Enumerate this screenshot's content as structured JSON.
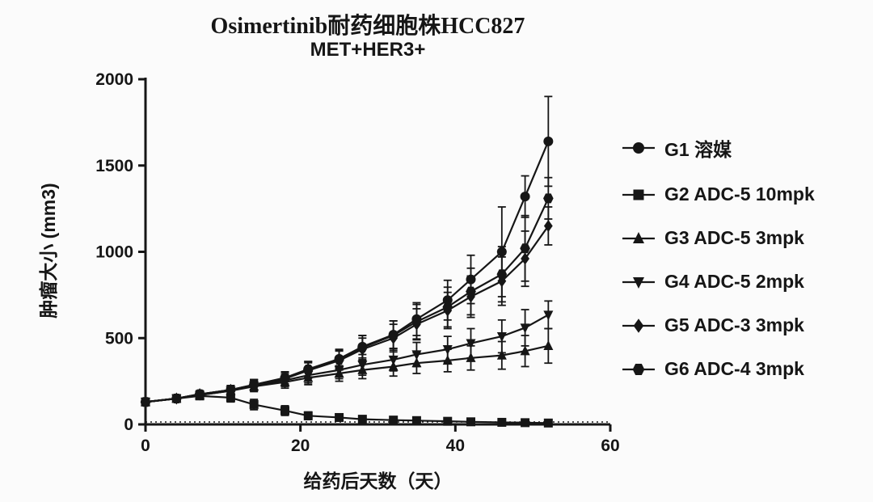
{
  "page": {
    "background": "#fbfbfb",
    "ink": "#161616"
  },
  "chart_data": {
    "type": "line",
    "title": "Osimertinib耐药细胞株HCC827",
    "subtitle": "MET+HER3+",
    "xlabel": "给药后天数（天）",
    "ylabel": "肿瘤大小 (mm3)",
    "xlim": [
      0,
      60
    ],
    "ylim": [
      0,
      2000
    ],
    "xticks": [
      0,
      20,
      40,
      60
    ],
    "yticks": [
      0,
      500,
      1000,
      1500,
      2000
    ],
    "grid": false,
    "zero_line_dotted": true,
    "legend_position": "right",
    "x": [
      0,
      4,
      7,
      11,
      14,
      18,
      21,
      25,
      28,
      32,
      35,
      39,
      42,
      46,
      49,
      52
    ],
    "series": [
      {
        "name": "G1  溶媒",
        "marker": "circle",
        "values": [
          130,
          150,
          175,
          200,
          230,
          270,
          320,
          380,
          450,
          520,
          610,
          720,
          840,
          1000,
          1320,
          1640
        ],
        "errors": [
          15,
          15,
          20,
          25,
          30,
          35,
          45,
          55,
          65,
          80,
          95,
          115,
          140,
          260,
          120,
          260
        ]
      },
      {
        "name": "G2 ADC-5 10mpk",
        "marker": "square",
        "values": [
          130,
          150,
          165,
          155,
          115,
          80,
          50,
          40,
          30,
          25,
          22,
          18,
          15,
          12,
          10,
          8
        ],
        "errors": [
          15,
          15,
          20,
          25,
          30,
          28,
          22,
          16,
          12,
          10,
          8,
          8,
          6,
          6,
          5,
          5
        ]
      },
      {
        "name": "G3 ADC-5 3mpk",
        "marker": "triangle-up",
        "values": [
          130,
          150,
          170,
          195,
          220,
          245,
          270,
          295,
          315,
          335,
          355,
          370,
          385,
          400,
          425,
          455
        ],
        "errors": [
          15,
          15,
          20,
          25,
          30,
          35,
          40,
          45,
          50,
          55,
          60,
          65,
          70,
          80,
          90,
          100
        ]
      },
      {
        "name": "G4 ADC-5 2mpk",
        "marker": "triangle-down",
        "values": [
          130,
          150,
          170,
          195,
          225,
          255,
          285,
          315,
          345,
          375,
          405,
          435,
          470,
          510,
          560,
          635
        ],
        "errors": [
          15,
          15,
          20,
          25,
          30,
          35,
          45,
          50,
          60,
          65,
          70,
          75,
          85,
          95,
          105,
          80
        ]
      },
      {
        "name": "G5 ADC-3 3mpk",
        "marker": "diamond",
        "values": [
          130,
          150,
          175,
          200,
          228,
          265,
          312,
          370,
          435,
          500,
          580,
          660,
          740,
          830,
          960,
          1150
        ],
        "errors": [
          15,
          15,
          20,
          25,
          30,
          35,
          45,
          55,
          65,
          80,
          90,
          105,
          120,
          140,
          160,
          110
        ]
      },
      {
        "name": "G6 ADC-4 3mpk",
        "marker": "hexagon",
        "values": [
          130,
          150,
          175,
          200,
          230,
          268,
          318,
          375,
          445,
          515,
          595,
          680,
          770,
          870,
          1020,
          1310
        ],
        "errors": [
          15,
          15,
          20,
          25,
          30,
          35,
          45,
          55,
          70,
          85,
          100,
          115,
          135,
          160,
          190,
          120
        ]
      }
    ]
  }
}
